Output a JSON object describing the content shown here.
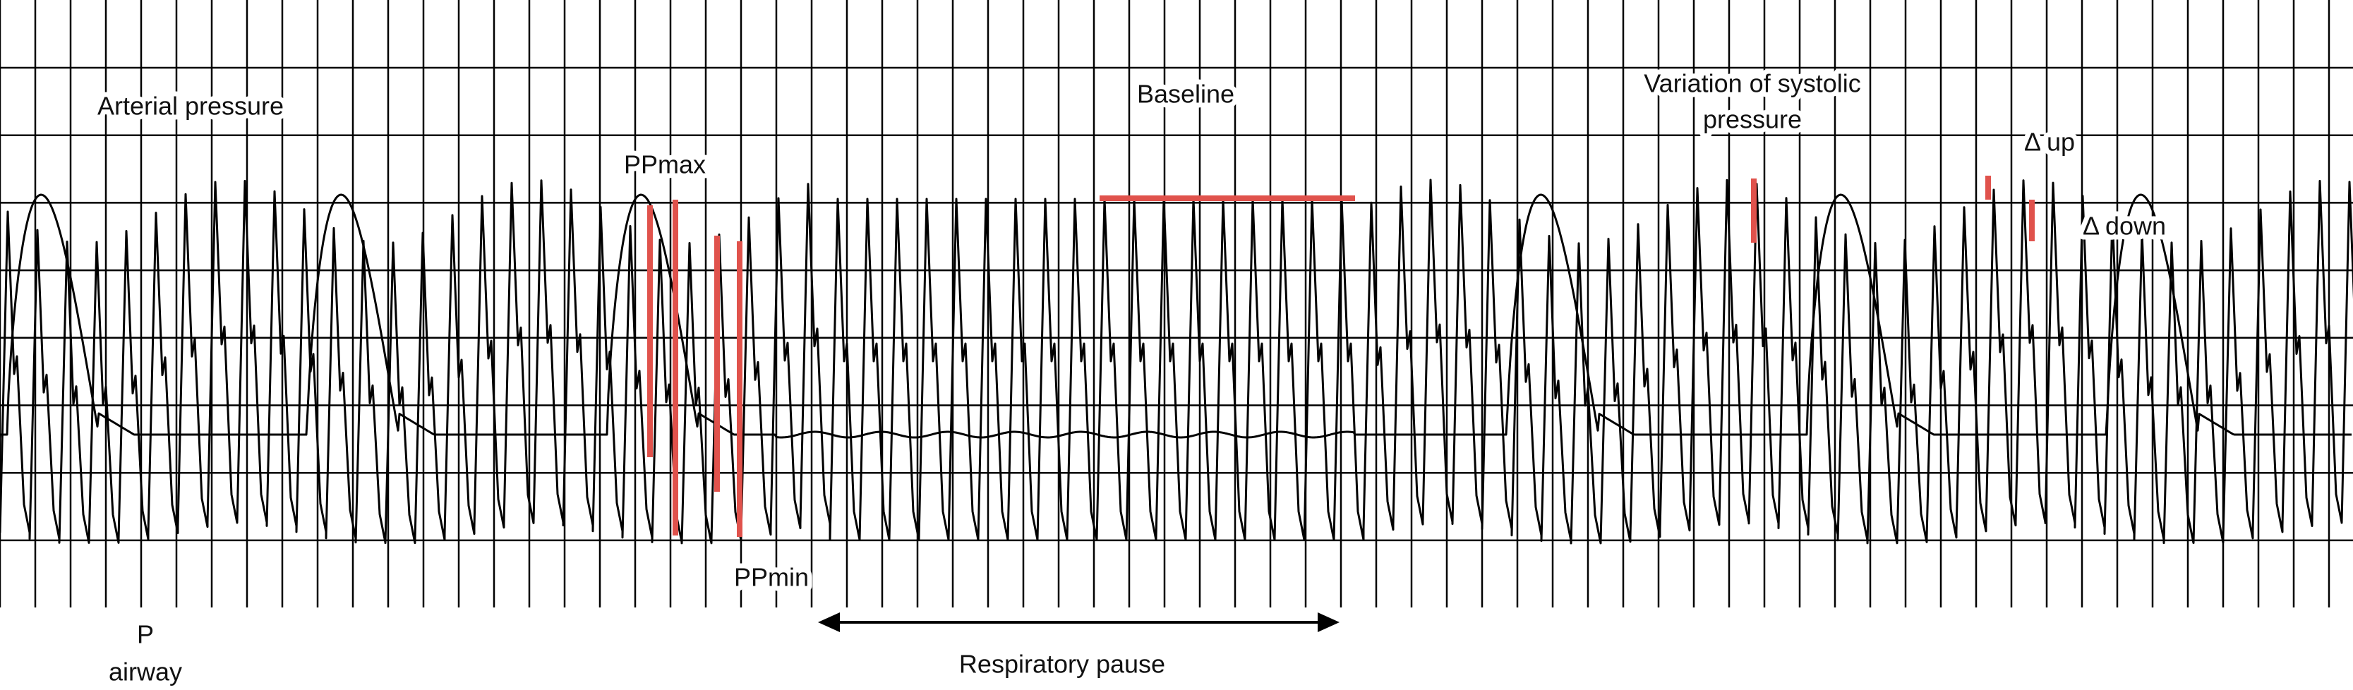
{
  "labels": {
    "arterial_pressure": "Arterial pressure",
    "baseline": "Baseline",
    "variation": [
      "Variation of systolic",
      "pressure"
    ],
    "delta_up": "Δ up",
    "delta_down": "Δ down",
    "pp_max": "PPmax",
    "pp_min": "PPmin",
    "p_airway": [
      "P",
      "airway"
    ],
    "respiratory_pause": "Respiratory pause"
  }
}
